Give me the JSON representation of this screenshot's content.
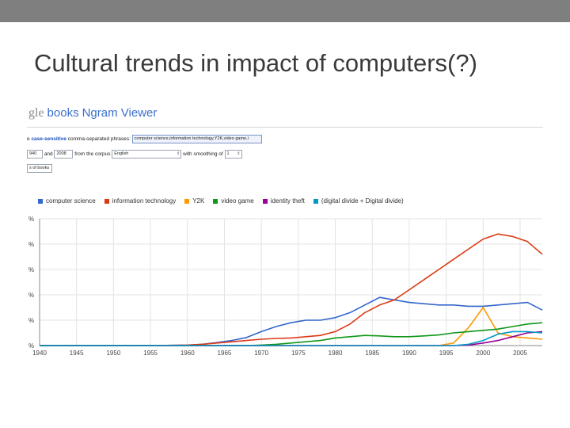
{
  "slide": {
    "title": "Cultural trends in impact of computers(?)"
  },
  "ngram": {
    "logo_partial": "gle",
    "logo_books": "books",
    "app_name": "Ngram Viewer",
    "row1_prefix": "e",
    "row1_link": "case-sensitive",
    "row1_label": "comma-separated phrases:",
    "phrases_value": "computer science,information technology,Y2K,video game,i",
    "year_from": "940",
    "between_label": "and",
    "year_to": "2008",
    "corpus_label": "from the corpus",
    "corpus_value": "English",
    "smoothing_label": "with smoothing of",
    "smoothing_value": "1",
    "books_label": "s of books"
  },
  "chart_data": {
    "type": "line",
    "x": [
      1940,
      1945,
      1950,
      1955,
      1960,
      1962,
      1964,
      1966,
      1968,
      1970,
      1972,
      1974,
      1976,
      1978,
      1980,
      1982,
      1984,
      1986,
      1988,
      1990,
      1992,
      1994,
      1996,
      1998,
      2000,
      2002,
      2004,
      2006,
      2008
    ],
    "series": [
      {
        "name": "computer science",
        "color": "#3366cc",
        "values": [
          0,
          0,
          0,
          0,
          0.002,
          0.005,
          0.012,
          0.02,
          0.032,
          0.055,
          0.075,
          0.09,
          0.1,
          0.1,
          0.11,
          0.13,
          0.16,
          0.19,
          0.18,
          0.17,
          0.165,
          0.16,
          0.16,
          0.155,
          0.155,
          0.16,
          0.165,
          0.17,
          0.14
        ]
      },
      {
        "name": "information technology",
        "color": "#dc3912",
        "values": [
          0,
          0,
          0,
          0,
          0.002,
          0.005,
          0.01,
          0.015,
          0.02,
          0.025,
          0.028,
          0.03,
          0.035,
          0.04,
          0.055,
          0.085,
          0.13,
          0.16,
          0.18,
          0.22,
          0.26,
          0.3,
          0.34,
          0.38,
          0.42,
          0.44,
          0.43,
          0.41,
          0.36
        ]
      },
      {
        "name": "Y2K",
        "color": "#ff9900",
        "values": [
          0,
          0,
          0,
          0,
          0,
          0,
          0,
          0,
          0,
          0,
          0,
          0,
          0,
          0,
          0,
          0,
          0,
          0,
          0,
          0,
          0,
          0,
          0.01,
          0.07,
          0.15,
          0.05,
          0.035,
          0.03,
          0.025
        ]
      },
      {
        "name": "video game",
        "color": "#109618",
        "values": [
          0,
          0,
          0,
          0,
          0,
          0,
          0,
          0,
          0,
          0.002,
          0.005,
          0.01,
          0.015,
          0.02,
          0.03,
          0.035,
          0.04,
          0.038,
          0.035,
          0.035,
          0.038,
          0.042,
          0.05,
          0.055,
          0.06,
          0.065,
          0.075,
          0.085,
          0.09
        ]
      },
      {
        "name": "identity theft",
        "color": "#990099",
        "values": [
          0,
          0,
          0,
          0,
          0,
          0,
          0,
          0,
          0,
          0,
          0,
          0,
          0,
          0,
          0,
          0,
          0,
          0,
          0,
          0,
          0,
          0,
          0,
          0.002,
          0.01,
          0.02,
          0.035,
          0.05,
          0.055
        ]
      },
      {
        "name": "(digital divide + Digital divide)",
        "color": "#0099c6",
        "values": [
          0,
          0,
          0,
          0,
          0,
          0,
          0,
          0,
          0,
          0,
          0,
          0,
          0,
          0,
          0,
          0,
          0,
          0,
          0,
          0,
          0,
          0,
          0,
          0.005,
          0.02,
          0.045,
          0.055,
          0.055,
          0.05
        ]
      }
    ],
    "xticks": [
      "1940",
      "1945",
      "1950",
      "1955",
      "1960",
      "1965",
      "1970",
      "1975",
      "1980",
      "1985",
      "1990",
      "1995",
      "2000",
      "2005"
    ],
    "ytick_labels": [
      "%",
      "%",
      "%",
      "%",
      "%",
      "%"
    ],
    "xlim": [
      1940,
      2008
    ],
    "ylim": [
      0,
      0.5
    ],
    "grid": true,
    "legend": "top"
  }
}
